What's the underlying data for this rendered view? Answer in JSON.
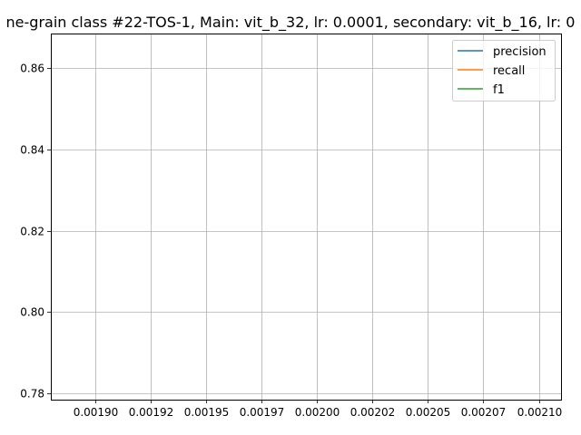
{
  "chart_data": {
    "type": "line",
    "title": "ne-grain class #22-TOS-1, Main: vit_b_32, lr: 0.0001, secondary: vit_b_16, lr: 0",
    "xlabel": "",
    "ylabel": "",
    "xlim": [
      0.00188,
      0.00211
    ],
    "ylim": [
      0.7785,
      0.8685
    ],
    "x_ticks": [
      0.0019,
      0.001925,
      0.00195,
      0.001975,
      0.002,
      0.002025,
      0.00205,
      0.002075,
      0.0021
    ],
    "x_tick_labels": [
      "0.00190",
      "0.00192",
      "0.00195",
      "0.00197",
      "0.00200",
      "0.00202",
      "0.00205",
      "0.00207",
      "0.00210"
    ],
    "y_ticks": [
      0.78,
      0.8,
      0.82,
      0.84,
      0.86
    ],
    "y_tick_labels": [
      "0.78",
      "0.80",
      "0.82",
      "0.84",
      "0.86"
    ],
    "grid": true,
    "legend_position": "top-right",
    "series": [
      {
        "name": "precision",
        "color": "#1f77b4",
        "x": [],
        "y": []
      },
      {
        "name": "recall",
        "color": "#ff7f0e",
        "x": [],
        "y": []
      },
      {
        "name": "f1",
        "color": "#2ca02c",
        "x": [],
        "y": []
      }
    ]
  }
}
